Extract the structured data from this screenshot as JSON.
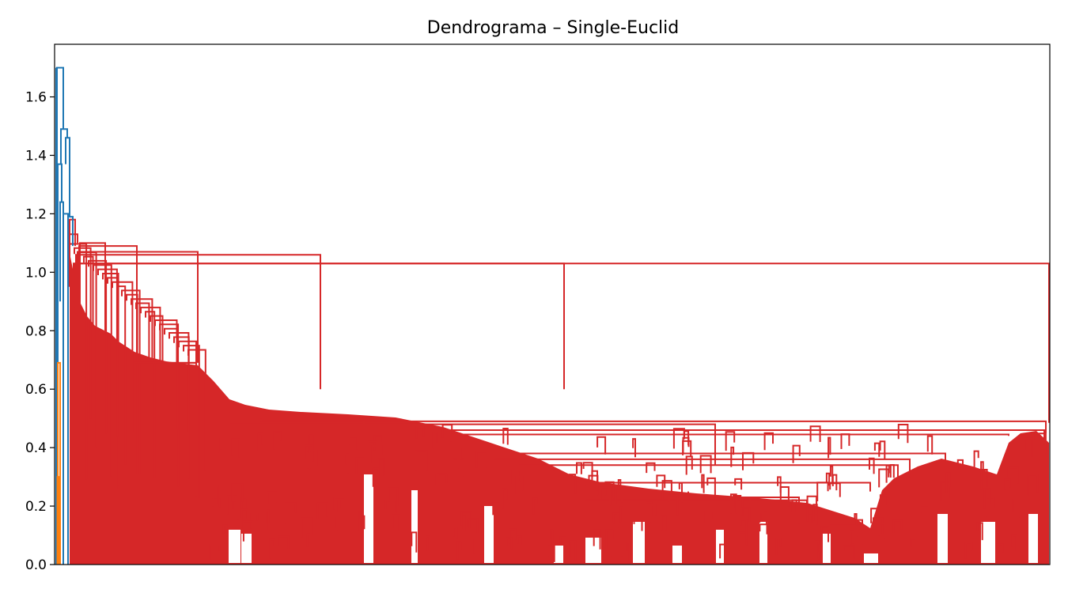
{
  "chart_data": {
    "type": "dendrogram",
    "title": "Dendrograma – Single-Euclid",
    "xlabel": "",
    "ylabel": "",
    "ylim": [
      0.0,
      1.78
    ],
    "y_ticks": [
      "0.0",
      "0.2",
      "0.4",
      "0.6",
      "0.8",
      "1.0",
      "1.2",
      "1.4",
      "1.6"
    ],
    "x_ticks_visible": false,
    "grid": false,
    "colors": {
      "cluster_1": "#ff7f0e",
      "cluster_2": "#d62728",
      "above_threshold": "#1f77b4"
    },
    "root_height": 1.7,
    "notable_merge_heights": [
      1.7,
      1.49,
      1.46,
      1.37,
      1.37,
      1.24,
      1.19,
      1.18,
      1.13,
      1.1,
      1.09,
      1.07,
      1.06,
      1.03,
      1.03,
      0.69,
      0.69,
      0.53,
      0.49,
      0.48,
      0.46
    ]
  }
}
